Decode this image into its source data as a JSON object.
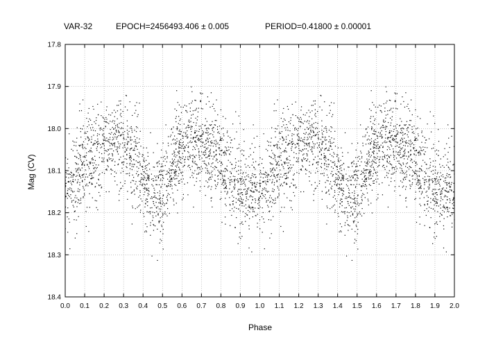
{
  "chart_data": {
    "type": "scatter",
    "title": "VAR-32",
    "epoch_label": "EPOCH=2456493.406 ± 0.005",
    "period_label": "PERIOD=0.41800 ± 0.00001",
    "xlabel": "Phase",
    "ylabel": "Mag (CV)",
    "xlim": [
      0.0,
      2.0
    ],
    "ylim": [
      18.4,
      17.8
    ],
    "y_inverted": true,
    "x_ticks": [
      "0.0",
      "0.1",
      "0.2",
      "0.3",
      "0.4",
      "0.5",
      "0.6",
      "0.7",
      "0.8",
      "0.9",
      "1.0",
      "1.1",
      "1.2",
      "1.3",
      "1.4",
      "1.5",
      "1.6",
      "1.7",
      "1.8",
      "1.9",
      "2.0"
    ],
    "y_ticks": [
      "17.8",
      "17.9",
      "18.0",
      "18.1",
      "18.2",
      "18.3",
      "18.4"
    ],
    "grid": true,
    "grid_style": "dotted",
    "marker_color": "#000000",
    "points_per_cycle": 2000,
    "light_curve_model": {
      "phase_nodes": [
        0.0,
        0.05,
        0.1,
        0.15,
        0.2,
        0.25,
        0.3,
        0.35,
        0.4,
        0.45,
        0.5,
        0.55,
        0.6,
        0.65,
        0.7,
        0.75,
        0.8,
        0.85,
        0.9,
        0.95,
        1.0
      ],
      "mean_mag": [
        18.14,
        18.12,
        18.09,
        18.06,
        18.04,
        18.03,
        18.04,
        18.07,
        18.12,
        18.17,
        18.15,
        18.09,
        18.05,
        18.03,
        18.03,
        18.05,
        18.08,
        18.11,
        18.14,
        18.15,
        18.14
      ],
      "scatter_mag": 0.055
    }
  }
}
